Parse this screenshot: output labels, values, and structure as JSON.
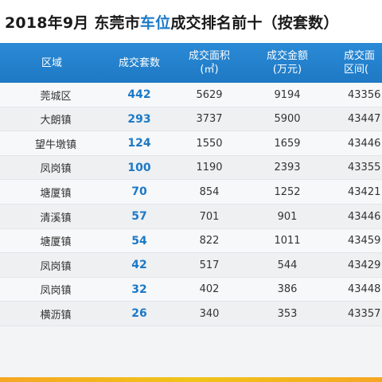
{
  "title": {
    "prefix": "2018年9月 东莞市",
    "highlight": "车位",
    "suffix": "成交排名前十（按套数）"
  },
  "columns": [
    {
      "line1": "区域",
      "line2": ""
    },
    {
      "line1": "成交套数",
      "line2": ""
    },
    {
      "line1": "成交面积",
      "line2": "(㎡)"
    },
    {
      "line1": "成交金额",
      "line2": "(万元)"
    },
    {
      "line1": "成交面",
      "line2": "区间("
    }
  ],
  "rows": [
    {
      "area": "莞城区",
      "count": "442",
      "size": "5629",
      "amount": "9194",
      "range": "43356"
    },
    {
      "area": "大朗镇",
      "count": "293",
      "size": "3737",
      "amount": "5900",
      "range": "43447"
    },
    {
      "area": "望牛墩镇",
      "count": "124",
      "size": "1550",
      "amount": "1659",
      "range": "43446"
    },
    {
      "area": "凤岗镇",
      "count": "100",
      "size": "1190",
      "amount": "2393",
      "range": "43355"
    },
    {
      "area": "塘厦镇",
      "count": "70",
      "size": "854",
      "amount": "1252",
      "range": "43421"
    },
    {
      "area": "清溪镇",
      "count": "57",
      "size": "701",
      "amount": "901",
      "range": "43446"
    },
    {
      "area": "塘厦镇",
      "count": "54",
      "size": "822",
      "amount": "1011",
      "range": "43459"
    },
    {
      "area": "凤岗镇",
      "count": "42",
      "size": "517",
      "amount": "544",
      "range": "43429"
    },
    {
      "area": "凤岗镇",
      "count": "32",
      "size": "402",
      "amount": "386",
      "range": "43448"
    },
    {
      "area": "横沥镇",
      "count": "26",
      "size": "340",
      "amount": "353",
      "range": "43357"
    }
  ],
  "colors": {
    "header": "#1f79c4",
    "highlight": "#1d79c6",
    "footer_strip": "#f5a623"
  }
}
